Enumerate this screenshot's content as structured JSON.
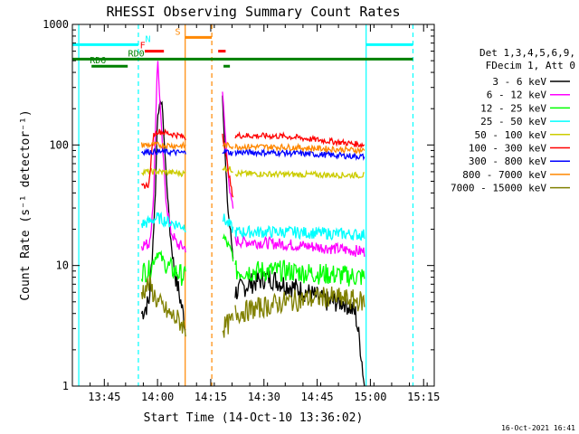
{
  "chart_data": {
    "type": "line",
    "title": "RHESSI Observing Summary Count Rates",
    "xlabel": "Start Time (14-Oct-10 13:36:02)",
    "ylabel": "Count Rate (s⁻¹ detector⁻¹)",
    "ylog": true,
    "xlim": [
      13.6,
      15.3
    ],
    "ylim": [
      1,
      1000
    ],
    "x_ticks": [
      {
        "v": 13.75,
        "label": "13:45"
      },
      {
        "v": 14.0,
        "label": "14:00"
      },
      {
        "v": 14.25,
        "label": "14:15"
      },
      {
        "v": 14.5,
        "label": "14:30"
      },
      {
        "v": 14.75,
        "label": "14:45"
      },
      {
        "v": 15.0,
        "label": "15:00"
      },
      {
        "v": 15.25,
        "label": "15:15"
      }
    ],
    "y_ticks": [
      {
        "v": 1,
        "label": "1"
      },
      {
        "v": 10,
        "label": "10"
      },
      {
        "v": 100,
        "label": "100"
      },
      {
        "v": 1000,
        "label": "1000"
      }
    ],
    "legend_title": [
      "Det 1,3,4,5,6,9,",
      "FDecim 1, Att 0"
    ],
    "legend_placement": "right",
    "gaps": [
      [
        14.132,
        14.25
      ],
      [
        14.295,
        14.305
      ],
      [
        14.355,
        14.365
      ]
    ],
    "segments": [
      [
        13.925,
        14.132
      ],
      [
        14.305,
        14.355
      ],
      [
        14.365,
        14.972
      ]
    ],
    "series": [
      {
        "name": "3 - 6 keV",
        "color": "#000000",
        "x": [
          13.925,
          13.96,
          13.975,
          13.99,
          14.0,
          14.02,
          14.04,
          14.06,
          14.08,
          14.1,
          14.12,
          14.132,
          14.305,
          14.315,
          14.33,
          14.355,
          14.365,
          14.43,
          14.52,
          14.6,
          14.7,
          14.8,
          14.88,
          14.93,
          14.955,
          14.972
        ],
        "y": [
          4,
          5,
          12,
          40,
          180,
          240,
          60,
          18,
          9,
          6,
          4,
          3,
          270,
          100,
          30,
          12,
          6,
          7,
          8,
          7,
          6,
          5,
          5,
          4,
          2,
          1
        ]
      },
      {
        "name": "6 - 12 keV",
        "color": "#ff00ff",
        "x": [
          13.925,
          13.96,
          13.98,
          14.0,
          14.02,
          14.04,
          14.06,
          14.09,
          14.132,
          14.305,
          14.32,
          14.34,
          14.355,
          14.365,
          14.6,
          14.8,
          14.972
        ],
        "y": [
          15,
          15,
          30,
          550,
          120,
          35,
          20,
          15,
          14,
          280,
          110,
          40,
          30,
          16,
          15,
          14,
          13
        ]
      },
      {
        "name": "12 - 25 keV",
        "color": "#00ff00",
        "x": [
          13.925,
          13.96,
          14.0,
          14.04,
          14.08,
          14.132,
          14.305,
          14.355,
          14.365,
          14.6,
          14.972
        ],
        "y": [
          9,
          9,
          13,
          10,
          9,
          8,
          18,
          12,
          9,
          9,
          8
        ]
      },
      {
        "name": "25 - 50 keV",
        "color": "#00ffff",
        "x": [
          13.925,
          13.96,
          14.0,
          14.05,
          14.132,
          14.305,
          14.355,
          14.365,
          14.6,
          14.972
        ],
        "y": [
          22,
          23,
          25,
          23,
          21,
          25,
          20,
          19,
          19,
          18
        ]
      },
      {
        "name": "50 - 100 keV",
        "color": "#cccc00",
        "x": [
          13.925,
          14.0,
          14.132,
          14.305,
          14.355,
          14.365,
          14.6,
          14.972
        ],
        "y": [
          60,
          60,
          58,
          65,
          62,
          58,
          57,
          56
        ]
      },
      {
        "name": "100 - 300 keV",
        "color": "#ff0000",
        "x": [
          13.925,
          13.96,
          13.98,
          14.0,
          14.05,
          14.1,
          14.132,
          14.305,
          14.355,
          14.365,
          14.6,
          14.972
        ],
        "y": [
          45,
          47,
          120,
          130,
          125,
          120,
          115,
          125,
          35,
          120,
          118,
          100
        ]
      },
      {
        "name": "300 - 800 keV",
        "color": "#0000ff",
        "x": [
          13.925,
          14.0,
          14.132,
          14.305,
          14.355,
          14.365,
          14.6,
          14.972
        ],
        "y": [
          88,
          88,
          86,
          90,
          85,
          87,
          86,
          80
        ]
      },
      {
        "name": "800 - 7000 keV",
        "color": "#ff8800",
        "x": [
          13.925,
          14.0,
          14.132,
          14.305,
          14.355,
          14.365,
          14.6,
          14.972
        ],
        "y": [
          100,
          100,
          98,
          100,
          98,
          97,
          96,
          90
        ]
      },
      {
        "name": "7000 - 15000 keV",
        "color": "#808000",
        "x": [
          13.925,
          13.96,
          14.0,
          14.05,
          14.1,
          14.132,
          14.305,
          14.355,
          14.365,
          14.6,
          14.8,
          14.972
        ],
        "y": [
          6,
          7,
          5,
          4,
          3.5,
          3,
          3,
          3.5,
          4,
          5,
          5.5,
          5
        ]
      }
    ],
    "vertical_lines": [
      {
        "x": 13.63,
        "color": "#00ffff",
        "style": "solid"
      },
      {
        "x": 13.91,
        "color": "#00ffff",
        "style": "dashed"
      },
      {
        "x": 14.13,
        "color": "#ff8800",
        "style": "solid"
      },
      {
        "x": 14.255,
        "color": "#ff8800",
        "style": "dashed"
      },
      {
        "x": 14.98,
        "color": "#00ffff",
        "style": "solid"
      },
      {
        "x": 15.2,
        "color": "#00ffff",
        "style": "dashed"
      }
    ],
    "flag_bars": [
      {
        "label": "N",
        "color": "#00ffff",
        "y": 680,
        "x": [
          [
            13.6,
            13.91
          ],
          [
            14.98,
            15.2
          ]
        ],
        "label_x": 13.955
      },
      {
        "label": "S",
        "color": "#ff8800",
        "y": 780,
        "x": [
          [
            14.13,
            14.255
          ]
        ],
        "label_x": 14.095
      },
      {
        "label": "F",
        "color": "#ff0000",
        "y": 600,
        "x": [
          [
            13.94,
            14.03
          ],
          [
            14.285,
            14.32
          ]
        ],
        "label_x": 13.93
      },
      {
        "label": "RD0",
        "color": "#008000",
        "y": 515,
        "x": [
          [
            13.6,
            15.2
          ]
        ],
        "label_x": 13.9
      },
      {
        "label": "RD6",
        "color": "#008000",
        "y": 450,
        "x": [
          [
            13.69,
            13.86
          ],
          [
            14.31,
            14.34
          ]
        ],
        "label_x": 13.72
      }
    ]
  },
  "timestamp": "16-Oct-2021 16:41"
}
